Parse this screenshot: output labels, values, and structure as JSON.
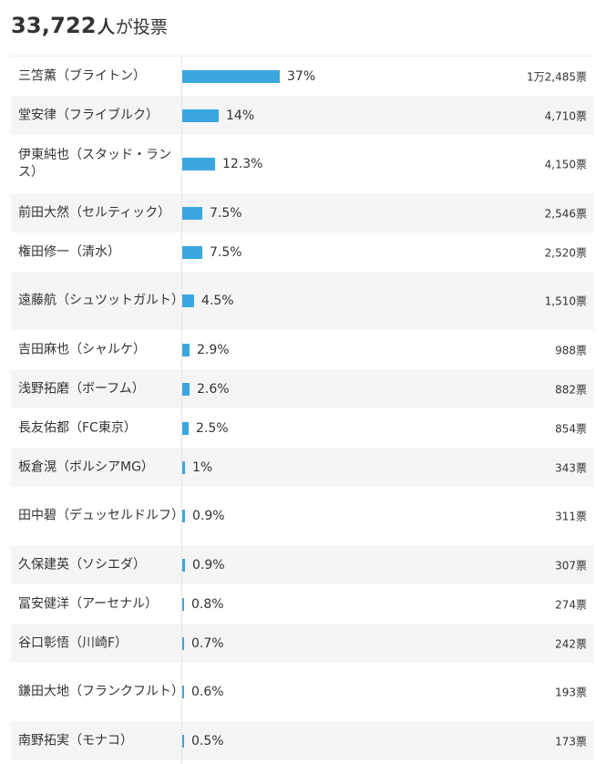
{
  "header": {
    "total_count": "33,722",
    "total_unit": "人",
    "total_suffix": "が投票"
  },
  "colors": {
    "bar": "#3ba7e1",
    "alt_row": "#f5f5f5"
  },
  "chart_data": {
    "type": "bar",
    "orientation": "horizontal",
    "categories": [
      "三笘薫（ブライトン）",
      "堂安律（フライブルク）",
      "伊東純也（スタッド・ランス）",
      "前田大然（セルティック）",
      "権田修一（清水）",
      "遠藤航（シュツットガルト）",
      "吉田麻也（シャルケ）",
      "浅野拓磨（ボーフム）",
      "長友佑都（FC東京）",
      "板倉滉（ボルシアMG）",
      "田中碧（デュッセルドルフ）",
      "久保建英（ソシエダ）",
      "冨安健洋（アーセナル）",
      "谷口彰悟（川崎F）",
      "鎌田大地（フランクフルト）",
      "南野拓実（モナコ）"
    ],
    "percent_values": [
      37,
      14,
      12.3,
      7.5,
      7.5,
      4.5,
      2.9,
      2.6,
      2.5,
      1,
      0.9,
      0.9,
      0.8,
      0.7,
      0.6,
      0.5
    ],
    "percent_labels": [
      "37%",
      "14%",
      "12.3%",
      "7.5%",
      "7.5%",
      "4.5%",
      "2.9%",
      "2.6%",
      "2.5%",
      "1%",
      "0.9%",
      "0.9%",
      "0.8%",
      "0.7%",
      "0.6%",
      "0.5%"
    ],
    "vote_labels": [
      "1万2,485票",
      "4,710票",
      "4,150票",
      "2,546票",
      "2,520票",
      "1,510票",
      "988票",
      "882票",
      "854票",
      "343票",
      "311票",
      "307票",
      "274票",
      "242票",
      "193票",
      "173票"
    ],
    "xlim": [
      0,
      100
    ],
    "grid": false,
    "legend": "none"
  }
}
